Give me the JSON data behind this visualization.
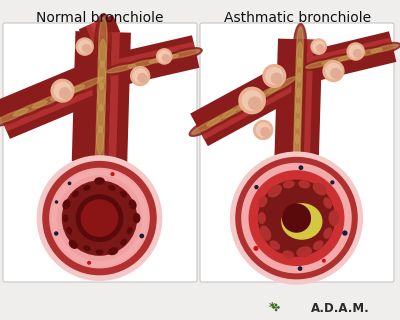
{
  "title_left": "Normal bronchiole",
  "title_right": "Asthmatic bronchiole",
  "bg_color": "#f0eeec",
  "panel_bg": "#ffffff",
  "colors": {
    "tube_dark": "#8b1c1c",
    "tube_mid": "#b03030",
    "tube_bright": "#cc4444",
    "tube_copper": "#a0522d",
    "tube_gold": "#b8860b",
    "tube_light": "#cd853f",
    "nodule_outer": "#d4907a",
    "nodule_mid": "#e8b090",
    "nodule_light": "#f0c8b0",
    "wall_outer": "#f5c8c8",
    "wall_mid": "#f0a0a0",
    "wall_inner": "#e87878",
    "lumen_normal": "#8b1515",
    "lumen_dark": "#5a0a0a",
    "fold_color": "#7a1818",
    "pink_layer": "#f2aaaa",
    "inflammation": "#cc3030",
    "mucus": "#d4c840",
    "mucus_light": "#e8dc80",
    "dark_spot": "#1a1a3a",
    "red_spot": "#cc1111",
    "wrap_line": "#c8a050",
    "bg_panel": "#faf8f8",
    "border": "#c0c0c0"
  },
  "adam_color": "#2a2a2a",
  "adam_green": "#3a6b20"
}
